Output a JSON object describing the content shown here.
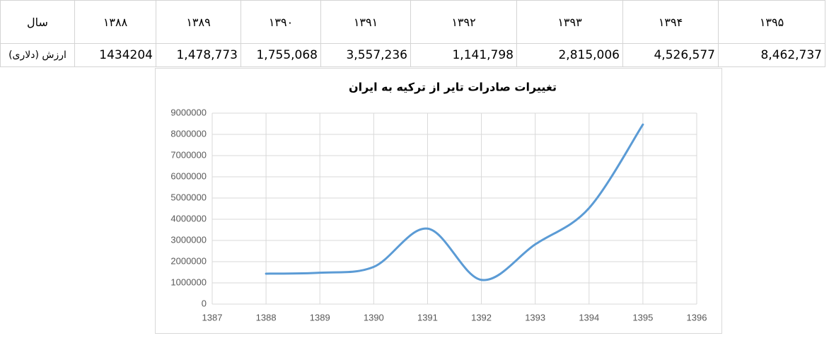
{
  "table": {
    "rows": [
      [
        "سال",
        "۱۳۸۸",
        "۱۳۸۹",
        "۱۳۹۰",
        "۱۳۹۱",
        "۱۳۹۲",
        "۱۳۹۳",
        "۱۳۹۴",
        "۱۳۹۵"
      ],
      [
        "ارزش (دلاری)",
        "1434204",
        "1,478,773",
        "1,755,068",
        "3,557,236",
        "1,141,798",
        "2,815,006",
        "4,526,577",
        "8,462,737"
      ]
    ]
  },
  "chart_data": {
    "type": "line",
    "title": "تغییرات صادرات تایر از ترکیه به ایران",
    "x": [
      1388,
      1389,
      1390,
      1391,
      1392,
      1393,
      1394,
      1395
    ],
    "values": [
      1434204,
      1478773,
      1755068,
      3557236,
      1141798,
      2815006,
      4526577,
      8462737
    ],
    "color": "#5b9bd5",
    "smooth": true,
    "grid": true,
    "xlim": [
      1387,
      1396
    ],
    "xticks": [
      1387,
      1388,
      1389,
      1390,
      1391,
      1392,
      1393,
      1394,
      1395,
      1396
    ],
    "ylim": [
      0,
      9000000
    ],
    "yticks": [
      0,
      1000000,
      2000000,
      3000000,
      4000000,
      5000000,
      6000000,
      7000000,
      8000000,
      9000000
    ]
  }
}
